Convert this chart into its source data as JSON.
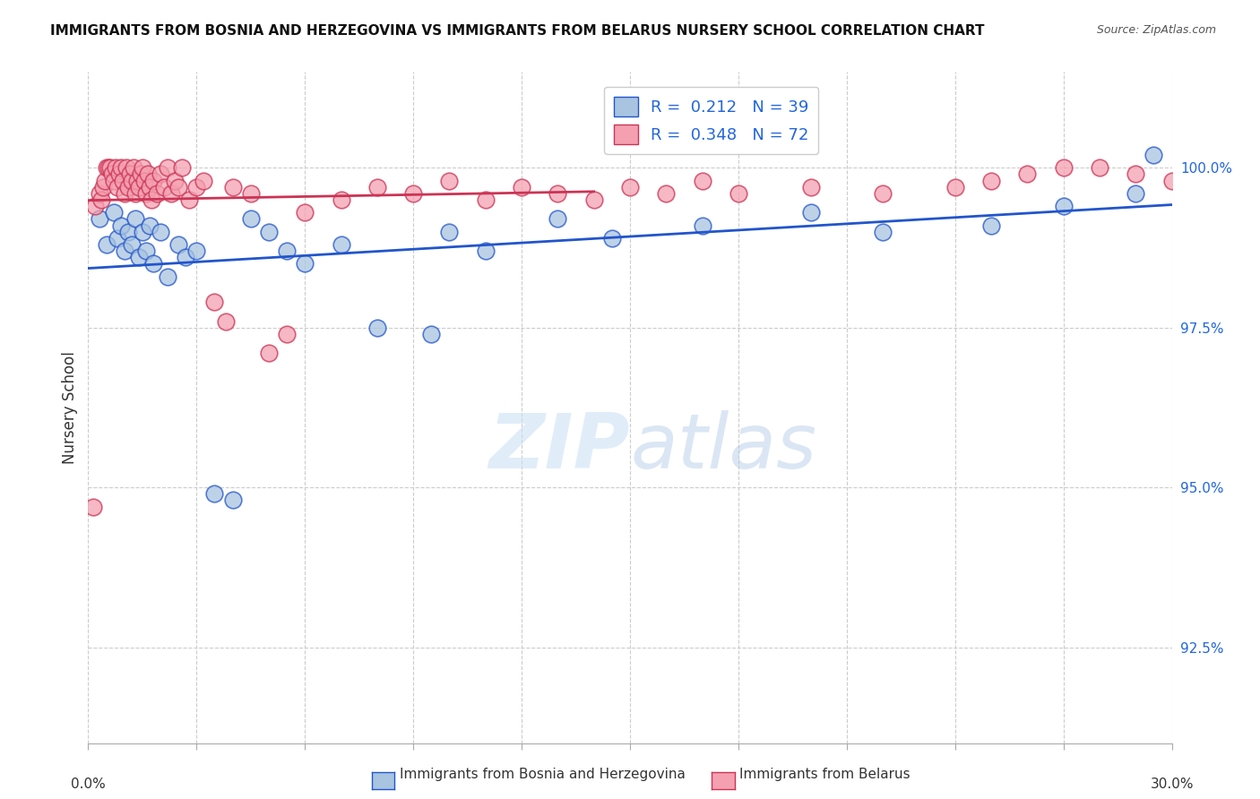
{
  "title": "IMMIGRANTS FROM BOSNIA AND HERZEGOVINA VS IMMIGRANTS FROM BELARUS NURSERY SCHOOL CORRELATION CHART",
  "source": "Source: ZipAtlas.com",
  "ylabel": "Nursery School",
  "ytick_labels": [
    "92.5%",
    "95.0%",
    "97.5%",
    "100.0%"
  ],
  "ytick_values": [
    92.5,
    95.0,
    97.5,
    100.0
  ],
  "xmin": 0.0,
  "xmax": 30.0,
  "ymin": 91.0,
  "ymax": 101.5,
  "legend_blue_r": "0.212",
  "legend_blue_n": "39",
  "legend_pink_r": "0.348",
  "legend_pink_n": "72",
  "legend_label_blue": "Immigrants from Bosnia and Herzegovina",
  "legend_label_pink": "Immigrants from Belarus",
  "color_blue": "#a8c4e0",
  "color_pink": "#f4a0b0",
  "trendline_blue": "#2255cc",
  "trendline_pink": "#cc3355",
  "watermark_zip": "ZIP",
  "watermark_atlas": "atlas",
  "blue_points_x": [
    0.3,
    0.5,
    0.7,
    0.8,
    0.9,
    1.0,
    1.1,
    1.2,
    1.3,
    1.4,
    1.5,
    1.6,
    1.7,
    1.8,
    2.0,
    2.2,
    2.5,
    2.7,
    3.0,
    3.5,
    4.0,
    4.5,
    5.0,
    5.5,
    6.0,
    7.0,
    8.0,
    9.5,
    10.0,
    11.0,
    13.0,
    14.5,
    17.0,
    20.0,
    22.0,
    25.0,
    27.0,
    29.0,
    29.5
  ],
  "blue_points_y": [
    99.2,
    98.8,
    99.3,
    98.9,
    99.1,
    98.7,
    99.0,
    98.8,
    99.2,
    98.6,
    99.0,
    98.7,
    99.1,
    98.5,
    99.0,
    98.3,
    98.8,
    98.6,
    98.7,
    94.9,
    94.8,
    99.2,
    99.0,
    98.7,
    98.5,
    98.8,
    97.5,
    97.4,
    99.0,
    98.7,
    99.2,
    98.9,
    99.1,
    99.3,
    99.0,
    99.1,
    99.4,
    99.6,
    100.2
  ],
  "pink_points_x": [
    0.15,
    0.2,
    0.3,
    0.35,
    0.4,
    0.45,
    0.5,
    0.55,
    0.6,
    0.65,
    0.7,
    0.75,
    0.8,
    0.85,
    0.9,
    0.95,
    1.0,
    1.05,
    1.1,
    1.15,
    1.2,
    1.25,
    1.3,
    1.35,
    1.4,
    1.45,
    1.5,
    1.55,
    1.6,
    1.65,
    1.7,
    1.75,
    1.8,
    1.9,
    2.0,
    2.1,
    2.2,
    2.3,
    2.4,
    2.5,
    2.6,
    2.8,
    3.0,
    3.2,
    3.5,
    3.8,
    4.0,
    4.5,
    5.0,
    5.5,
    6.0,
    7.0,
    8.0,
    9.0,
    10.0,
    11.0,
    12.0,
    13.0,
    14.0,
    15.0,
    16.0,
    17.0,
    18.0,
    20.0,
    22.0,
    24.0,
    25.0,
    26.0,
    27.0,
    28.0,
    29.0,
    30.0
  ],
  "pink_points_y": [
    94.7,
    99.4,
    99.6,
    99.5,
    99.7,
    99.8,
    100.0,
    100.0,
    100.0,
    99.9,
    99.8,
    100.0,
    99.7,
    99.9,
    100.0,
    99.8,
    99.6,
    100.0,
    99.7,
    99.9,
    99.8,
    100.0,
    99.6,
    99.8,
    99.7,
    99.9,
    100.0,
    99.8,
    99.6,
    99.9,
    99.7,
    99.5,
    99.8,
    99.6,
    99.9,
    99.7,
    100.0,
    99.6,
    99.8,
    99.7,
    100.0,
    99.5,
    99.7,
    99.8,
    97.9,
    97.6,
    99.7,
    99.6,
    97.1,
    97.4,
    99.3,
    99.5,
    99.7,
    99.6,
    99.8,
    99.5,
    99.7,
    99.6,
    99.5,
    99.7,
    99.6,
    99.8,
    99.6,
    99.7,
    99.6,
    99.7,
    99.8,
    99.9,
    100.0,
    100.0,
    99.9,
    99.8
  ]
}
